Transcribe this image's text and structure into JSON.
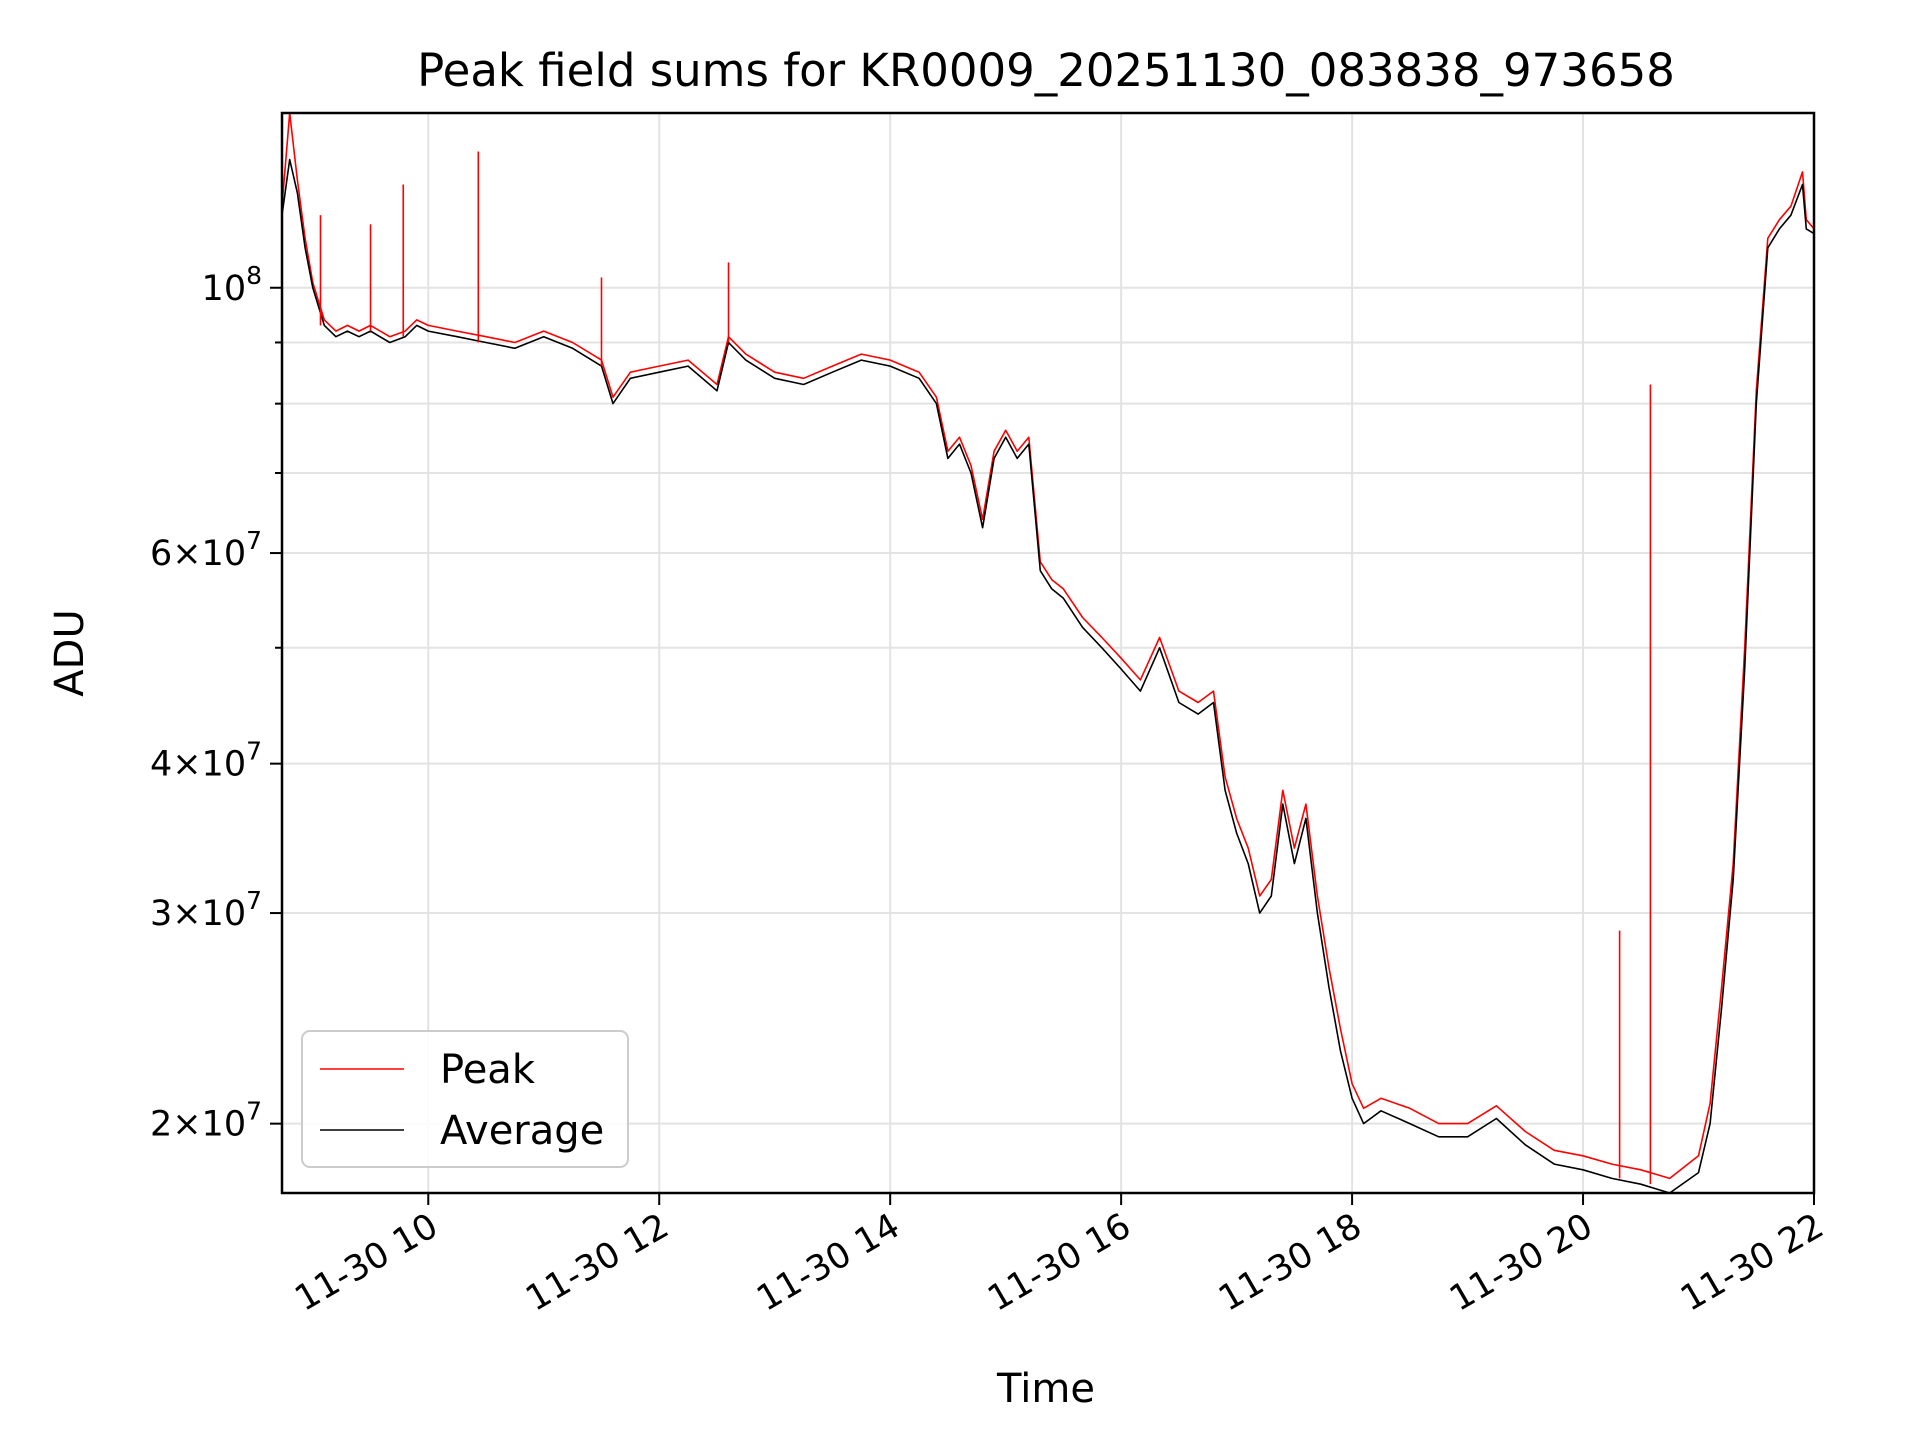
{
  "chart_data": {
    "type": "line",
    "title": "Peak field sums for KR0009_20251130_083838_973658",
    "xlabel": "Time",
    "ylabel": "ADU",
    "yscale": "log",
    "xlim": [
      "2025-11-30 08:44",
      "2025-11-30 22:00"
    ],
    "ylim": [
      17500000,
      140000000
    ],
    "grid": true,
    "legend_position": "lower-left",
    "x_ticks": [
      {
        "x": "2025-11-30 10:00",
        "label": "11-30 10"
      },
      {
        "x": "2025-11-30 12:00",
        "label": "11-30 12"
      },
      {
        "x": "2025-11-30 14:00",
        "label": "11-30 14"
      },
      {
        "x": "2025-11-30 16:00",
        "label": "11-30 16"
      },
      {
        "x": "2025-11-30 18:00",
        "label": "11-30 18"
      },
      {
        "x": "2025-11-30 20:00",
        "label": "11-30 20"
      },
      {
        "x": "2025-11-30 22:00",
        "label": "11-30 22"
      }
    ],
    "y_ticks": [
      {
        "value": 20000000,
        "mantissa": "2",
        "exponent": "7"
      },
      {
        "value": 30000000,
        "mantissa": "3",
        "exponent": "7"
      },
      {
        "value": 40000000,
        "mantissa": "4",
        "exponent": "7"
      },
      {
        "value": 60000000,
        "mantissa": "6",
        "exponent": "7"
      },
      {
        "value": 100000000,
        "mantissa": "",
        "exponent": "8"
      }
    ],
    "y_minor_ticks": [
      50000000,
      70000000,
      80000000,
      90000000
    ],
    "series": [
      {
        "name": "Average",
        "color": "#000000",
        "x": [
          "2025-11-30 08:44",
          "2025-11-30 08:48",
          "2025-11-30 08:52",
          "2025-11-30 08:56",
          "2025-11-30 09:00",
          "2025-11-30 09:06",
          "2025-11-30 09:12",
          "2025-11-30 09:18",
          "2025-11-30 09:24",
          "2025-11-30 09:30",
          "2025-11-30 09:40",
          "2025-11-30 09:48",
          "2025-11-30 09:54",
          "2025-11-30 10:00",
          "2025-11-30 10:15",
          "2025-11-30 10:30",
          "2025-11-30 10:45",
          "2025-11-30 11:00",
          "2025-11-30 11:15",
          "2025-11-30 11:30",
          "2025-11-30 11:36",
          "2025-11-30 11:45",
          "2025-11-30 12:00",
          "2025-11-30 12:15",
          "2025-11-30 12:30",
          "2025-11-30 12:36",
          "2025-11-30 12:45",
          "2025-11-30 13:00",
          "2025-11-30 13:15",
          "2025-11-30 13:30",
          "2025-11-30 13:45",
          "2025-11-30 14:00",
          "2025-11-30 14:15",
          "2025-11-30 14:24",
          "2025-11-30 14:30",
          "2025-11-30 14:36",
          "2025-11-30 14:42",
          "2025-11-30 14:48",
          "2025-11-30 14:54",
          "2025-11-30 15:00",
          "2025-11-30 15:06",
          "2025-11-30 15:12",
          "2025-11-30 15:18",
          "2025-11-30 15:24",
          "2025-11-30 15:30",
          "2025-11-30 15:40",
          "2025-11-30 15:50",
          "2025-11-30 16:00",
          "2025-11-30 16:10",
          "2025-11-30 16:20",
          "2025-11-30 16:30",
          "2025-11-30 16:40",
          "2025-11-30 16:48",
          "2025-11-30 16:54",
          "2025-11-30 17:00",
          "2025-11-30 17:06",
          "2025-11-30 17:12",
          "2025-11-30 17:18",
          "2025-11-30 17:24",
          "2025-11-30 17:30",
          "2025-11-30 17:36",
          "2025-11-30 17:42",
          "2025-11-30 17:48",
          "2025-11-30 17:54",
          "2025-11-30 18:00",
          "2025-11-30 18:06",
          "2025-11-30 18:15",
          "2025-11-30 18:30",
          "2025-11-30 18:45",
          "2025-11-30 19:00",
          "2025-11-30 19:15",
          "2025-11-30 19:30",
          "2025-11-30 19:45",
          "2025-11-30 20:00",
          "2025-11-30 20:15",
          "2025-11-30 20:30",
          "2025-11-30 20:45",
          "2025-11-30 21:00",
          "2025-11-30 21:06",
          "2025-11-30 21:12",
          "2025-11-30 21:18",
          "2025-11-30 21:24",
          "2025-11-30 21:30",
          "2025-11-30 21:36",
          "2025-11-30 21:42",
          "2025-11-30 21:48",
          "2025-11-30 21:54",
          "2025-11-30 21:56",
          "2025-11-30 22:00"
        ],
        "values": [
          115000000,
          128000000,
          120000000,
          108000000,
          100000000,
          93000000,
          91000000,
          92000000,
          91000000,
          92000000,
          90000000,
          91000000,
          93000000,
          92000000,
          91000000,
          90000000,
          89000000,
          91000000,
          89000000,
          86000000,
          80000000,
          84000000,
          85000000,
          86000000,
          82000000,
          90000000,
          87000000,
          84000000,
          83000000,
          85000000,
          87000000,
          86000000,
          84000000,
          80000000,
          72000000,
          74000000,
          70000000,
          63000000,
          72000000,
          75000000,
          72000000,
          74000000,
          58000000,
          56000000,
          55000000,
          52000000,
          50000000,
          48000000,
          46000000,
          50000000,
          45000000,
          44000000,
          45000000,
          38000000,
          35000000,
          33000000,
          30000000,
          31000000,
          37000000,
          33000000,
          36000000,
          30000000,
          26000000,
          23000000,
          21000000,
          20000000,
          20500000,
          20000000,
          19500000,
          19500000,
          20200000,
          19200000,
          18500000,
          18300000,
          18000000,
          17800000,
          17500000,
          18200000,
          20000000,
          25000000,
          32000000,
          48000000,
          80000000,
          108000000,
          112000000,
          115000000,
          122000000,
          112000000,
          111000000
        ]
      },
      {
        "name": "Peak",
        "color": "#ff0000",
        "x": [
          "2025-11-30 08:44",
          "2025-11-30 08:48",
          "2025-11-30 08:52",
          "2025-11-30 08:56",
          "2025-11-30 09:00",
          "2025-11-30 09:06",
          "2025-11-30 09:12",
          "2025-11-30 09:18",
          "2025-11-30 09:24",
          "2025-11-30 09:30",
          "2025-11-30 09:40",
          "2025-11-30 09:48",
          "2025-11-30 09:54",
          "2025-11-30 10:00",
          "2025-11-30 10:15",
          "2025-11-30 10:30",
          "2025-11-30 10:45",
          "2025-11-30 11:00",
          "2025-11-30 11:15",
          "2025-11-30 11:30",
          "2025-11-30 11:36",
          "2025-11-30 11:45",
          "2025-11-30 12:00",
          "2025-11-30 12:15",
          "2025-11-30 12:30",
          "2025-11-30 12:36",
          "2025-11-30 12:45",
          "2025-11-30 13:00",
          "2025-11-30 13:15",
          "2025-11-30 13:30",
          "2025-11-30 13:45",
          "2025-11-30 14:00",
          "2025-11-30 14:15",
          "2025-11-30 14:24",
          "2025-11-30 14:30",
          "2025-11-30 14:36",
          "2025-11-30 14:42",
          "2025-11-30 14:48",
          "2025-11-30 14:54",
          "2025-11-30 15:00",
          "2025-11-30 15:06",
          "2025-11-30 15:12",
          "2025-11-30 15:18",
          "2025-11-30 15:24",
          "2025-11-30 15:30",
          "2025-11-30 15:40",
          "2025-11-30 15:50",
          "2025-11-30 16:00",
          "2025-11-30 16:10",
          "2025-11-30 16:20",
          "2025-11-30 16:30",
          "2025-11-30 16:40",
          "2025-11-30 16:48",
          "2025-11-30 16:54",
          "2025-11-30 17:00",
          "2025-11-30 17:06",
          "2025-11-30 17:12",
          "2025-11-30 17:18",
          "2025-11-30 17:24",
          "2025-11-30 17:30",
          "2025-11-30 17:36",
          "2025-11-30 17:42",
          "2025-11-30 17:48",
          "2025-11-30 17:54",
          "2025-11-30 18:00",
          "2025-11-30 18:06",
          "2025-11-30 18:15",
          "2025-11-30 18:30",
          "2025-11-30 18:45",
          "2025-11-30 19:00",
          "2025-11-30 19:15",
          "2025-11-30 19:30",
          "2025-11-30 19:45",
          "2025-11-30 20:00",
          "2025-11-30 20:15",
          "2025-11-30 20:30",
          "2025-11-30 20:45",
          "2025-11-30 21:00",
          "2025-11-30 21:06",
          "2025-11-30 21:12",
          "2025-11-30 21:18",
          "2025-11-30 21:24",
          "2025-11-30 21:30",
          "2025-11-30 21:36",
          "2025-11-30 21:42",
          "2025-11-30 21:48",
          "2025-11-30 21:54",
          "2025-11-30 21:56",
          "2025-11-30 22:00"
        ],
        "values": [
          117000000,
          140000000,
          123000000,
          110000000,
          101000000,
          94000000,
          92000000,
          93000000,
          92000000,
          93000000,
          91000000,
          92000000,
          94000000,
          93000000,
          92000000,
          91000000,
          90000000,
          92000000,
          90000000,
          87000000,
          81000000,
          85000000,
          86000000,
          87000000,
          83000000,
          91000000,
          88000000,
          85000000,
          84000000,
          86000000,
          88000000,
          87000000,
          85000000,
          81000000,
          73000000,
          75000000,
          71000000,
          64000000,
          73000000,
          76000000,
          73000000,
          75000000,
          59000000,
          57000000,
          56000000,
          53000000,
          51000000,
          49000000,
          47000000,
          51000000,
          46000000,
          45000000,
          46000000,
          39000000,
          36000000,
          34000000,
          31000000,
          32000000,
          38000000,
          34000000,
          37000000,
          31000000,
          27000000,
          24000000,
          21600000,
          20600000,
          21000000,
          20600000,
          20000000,
          20000000,
          20700000,
          19700000,
          19000000,
          18800000,
          18500000,
          18300000,
          18000000,
          18800000,
          20800000,
          26000000,
          33000000,
          50000000,
          82000000,
          110000000,
          114000000,
          117000000,
          125000000,
          114000000,
          112000000
        ]
      }
    ],
    "peak_spikes": [
      {
        "x": "2025-11-30 09:04",
        "value": 115000000
      },
      {
        "x": "2025-11-30 09:30",
        "value": 113000000
      },
      {
        "x": "2025-11-30 09:47",
        "value": 122000000
      },
      {
        "x": "2025-11-30 10:26",
        "value": 130000000
      },
      {
        "x": "2025-11-30 11:30",
        "value": 102000000
      },
      {
        "x": "2025-11-30 12:36",
        "value": 105000000
      },
      {
        "x": "2025-11-30 20:19",
        "value": 29000000
      },
      {
        "x": "2025-11-30 20:35",
        "value": 83000000
      }
    ]
  }
}
